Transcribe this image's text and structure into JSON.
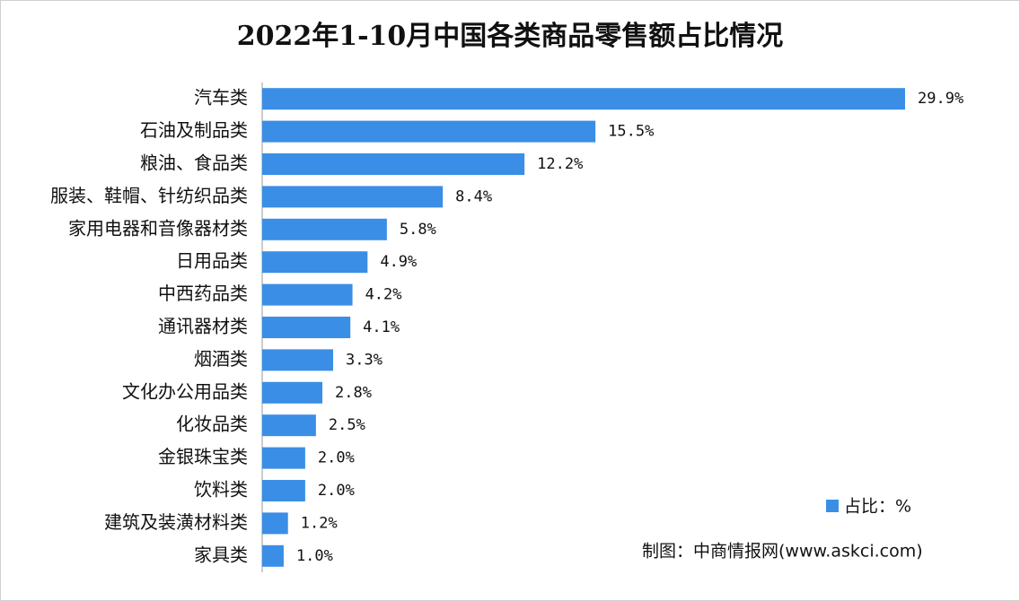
{
  "chart_data": {
    "type": "hbar",
    "title": "2022年1-10月中国各类商品零售额占比情况",
    "categories": [
      "汽车类",
      "石油及制品类",
      "粮油、食品类",
      "服装、鞋帽、针纺织品类",
      "家用电器和音像器材类",
      "日用品类",
      "中西药品类",
      "通讯器材类",
      "烟酒类",
      "文化办公用品类",
      "化妆品类",
      "金银珠宝类",
      "饮料类",
      "建筑及装潢材料类",
      "家具类"
    ],
    "series": [
      {
        "name": "占比：%",
        "color": "#3a8ee6",
        "values": [
          29.9,
          15.5,
          12.2,
          8.4,
          5.8,
          4.9,
          4.2,
          4.1,
          3.3,
          2.8,
          2.5,
          2.0,
          2.0,
          1.2,
          1.0
        ],
        "value_labels": [
          "29.9%",
          "15.5%",
          "12.2%",
          "8.4%",
          "5.8%",
          "4.9%",
          "4.2%",
          "4.1%",
          "3.3%",
          "2.8%",
          "2.5%",
          "2.0%",
          "2.0%",
          "1.2%",
          "1.0%"
        ]
      }
    ],
    "legend": "bottom-right",
    "source": "制图：中商情报网(www.askci.com)"
  }
}
